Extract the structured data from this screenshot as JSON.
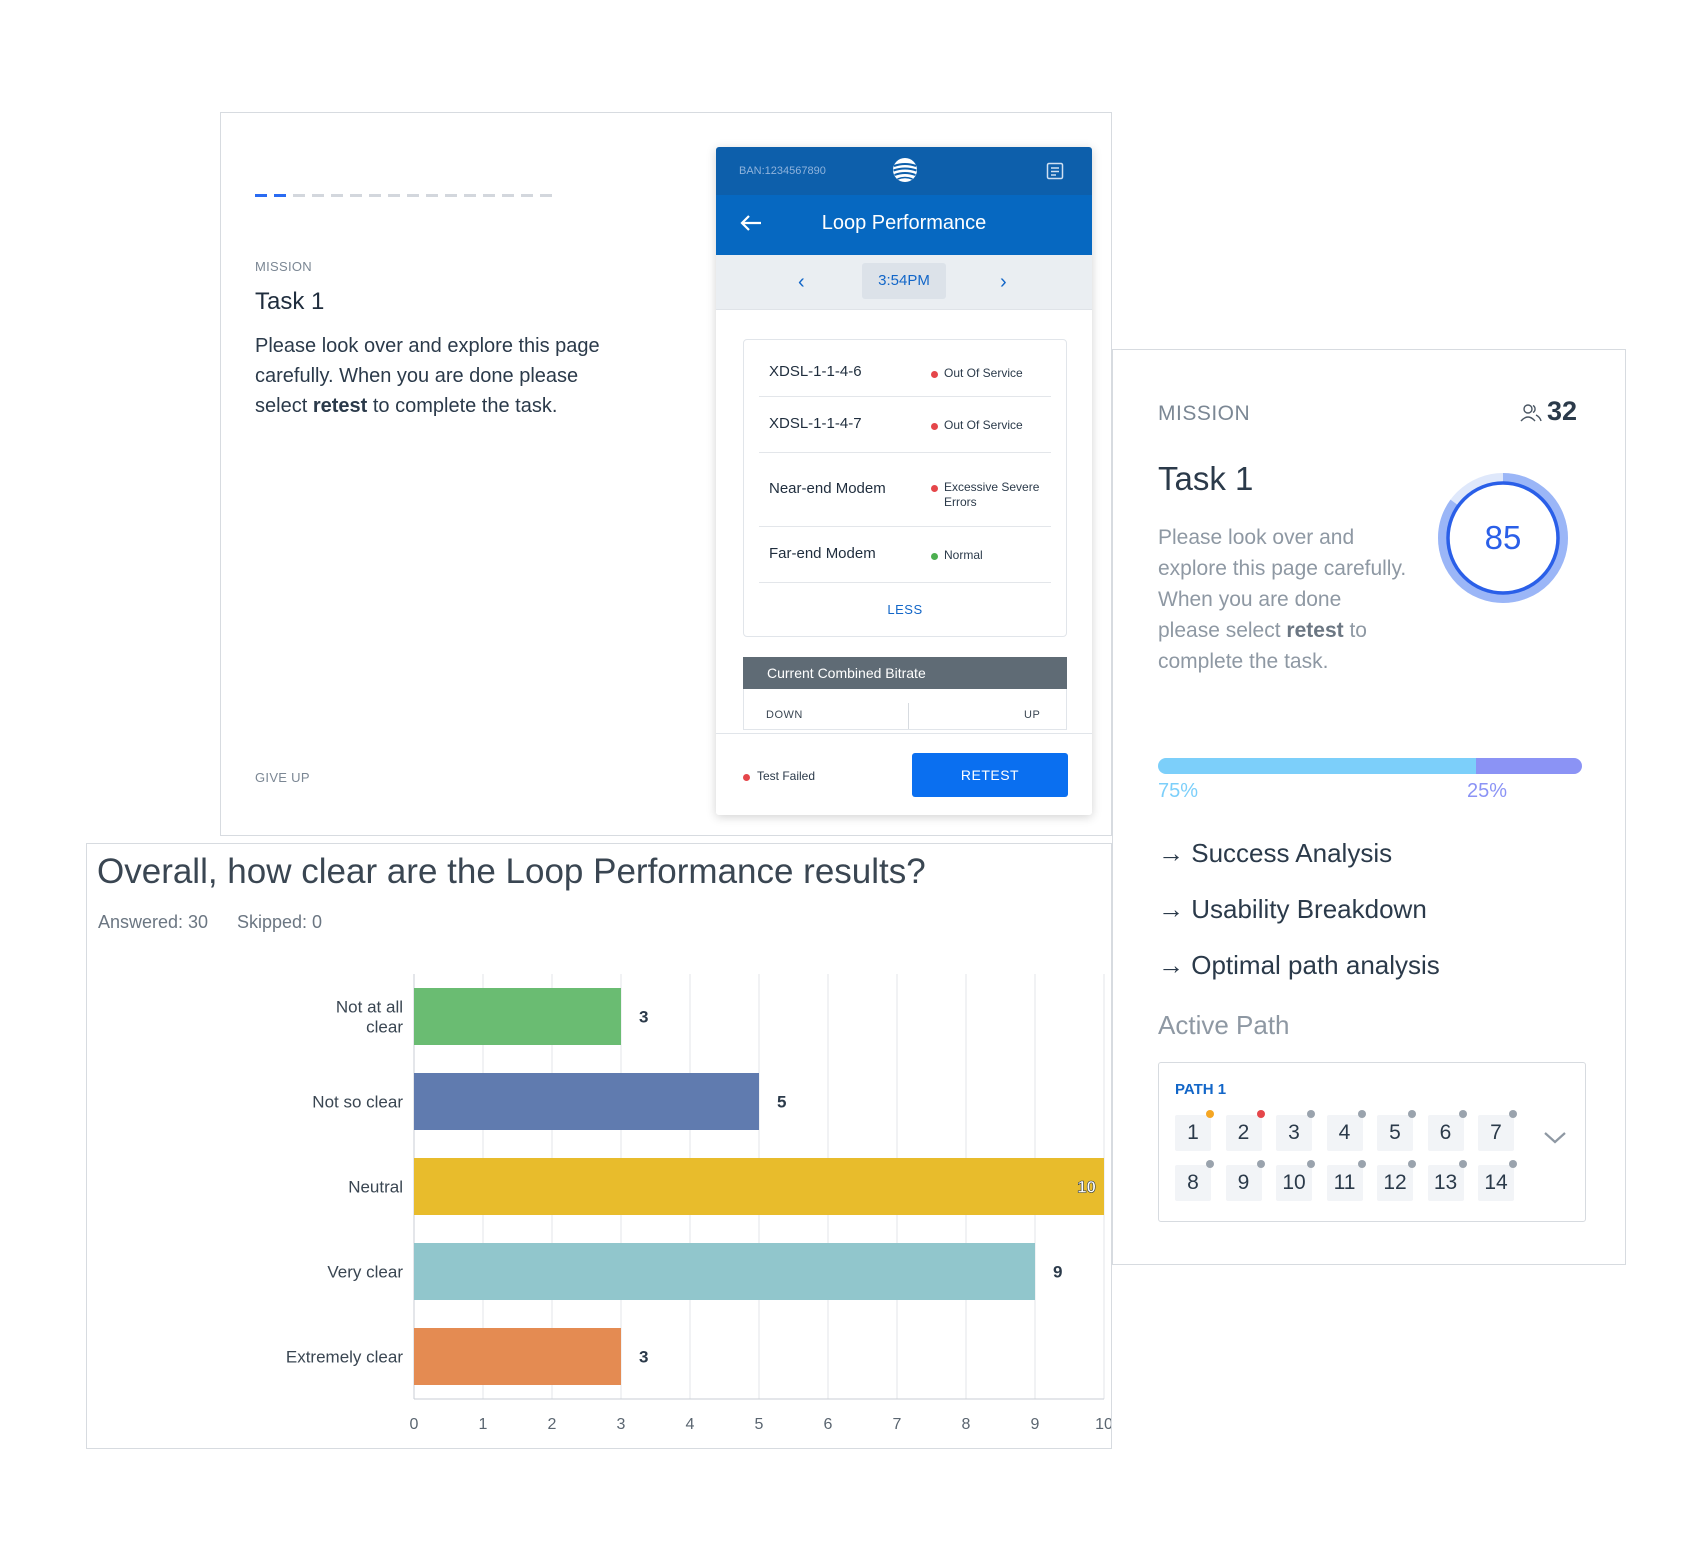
{
  "mission_panel": {
    "progress": {
      "current_step": 2,
      "total_steps": 16
    },
    "section_label": "MISSION",
    "title": "Task 1",
    "instructions_part1": "Please look over and explore this page carefully. When you are done please select ",
    "instructions_bold": "retest",
    "instructions_part2": " to complete the task.",
    "give_up_label": "GIVE UP"
  },
  "phone": {
    "ban": "BAN:1234567890",
    "header_title": "Loop Performance",
    "time": "3:54PM",
    "rows": [
      {
        "name": "XDSL-1-1-4-6",
        "status": "Out Of Service",
        "status_color": "#e5464a"
      },
      {
        "name": "XDSL-1-1-4-7",
        "status": "Out Of Service",
        "status_color": "#e5464a"
      },
      {
        "name": "Near-end Modem",
        "status_line1": "Excessive Severe",
        "status_line2": "Errors",
        "status_color": "#e5464a"
      },
      {
        "name": "Far-end Modem",
        "status": "Normal",
        "status_color": "#4caf50"
      }
    ],
    "less_label": "LESS",
    "bitrate_title": "Current Combined Bitrate",
    "down_label": "DOWN",
    "up_label": "UP",
    "test_status": "Test Failed",
    "retest_label": "RETEST"
  },
  "survey": {
    "question": "Overall, how clear are the Loop Performance results?",
    "answered": "Answered: 30",
    "skipped": "Skipped: 0"
  },
  "chart_data": {
    "type": "bar",
    "orientation": "horizontal",
    "categories": [
      [
        "Not at all",
        "clear"
      ],
      [
        "Not so clear"
      ],
      [
        "Neutral"
      ],
      [
        "Very clear"
      ],
      [
        "Extremely clear"
      ]
    ],
    "values": [
      3,
      5,
      10,
      9,
      3
    ],
    "colors": [
      "#6abc72",
      "#607baf",
      "#e8bc2c",
      "#91c6cc",
      "#e48b52"
    ],
    "xlim": [
      0,
      10
    ],
    "xticks": [
      0,
      1,
      2,
      3,
      4,
      5,
      6,
      7,
      8,
      9,
      10
    ],
    "grid": true
  },
  "analytics": {
    "section_label": "MISSION",
    "users_count": "32",
    "title": "Task 1",
    "instructions_part1": "Please look over and explore this page carefully. When you are done please select ",
    "instructions_bold": "retest",
    "instructions_part2": " to complete the task.",
    "score": "85",
    "score_fraction": 0.85,
    "split": {
      "a_fraction": 0.75,
      "b_fraction": 0.25,
      "a_label": "75%",
      "b_label": "25%"
    },
    "links": [
      "→ Success Analysis",
      "→ Usability Breakdown",
      "→ Optimal path analysis"
    ],
    "active_path_label": "Active Path",
    "path": {
      "label": "PATH 1",
      "steps": [
        {
          "n": "1",
          "dot": "#f5a623"
        },
        {
          "n": "2",
          "dot": "#e5464a"
        },
        {
          "n": "3",
          "dot": "#9aa3ad"
        },
        {
          "n": "4",
          "dot": "#9aa3ad"
        },
        {
          "n": "5",
          "dot": "#9aa3ad"
        },
        {
          "n": "6",
          "dot": "#9aa3ad"
        },
        {
          "n": "7",
          "dot": "#9aa3ad"
        },
        {
          "n": "8",
          "dot": "#9aa3ad"
        },
        {
          "n": "9",
          "dot": "#9aa3ad"
        },
        {
          "n": "10",
          "dot": "#9aa3ad"
        },
        {
          "n": "11",
          "dot": "#9aa3ad"
        },
        {
          "n": "12",
          "dot": "#9aa3ad"
        },
        {
          "n": "13",
          "dot": "#9aa3ad"
        },
        {
          "n": "14",
          "dot": "#9aa3ad"
        }
      ]
    }
  }
}
